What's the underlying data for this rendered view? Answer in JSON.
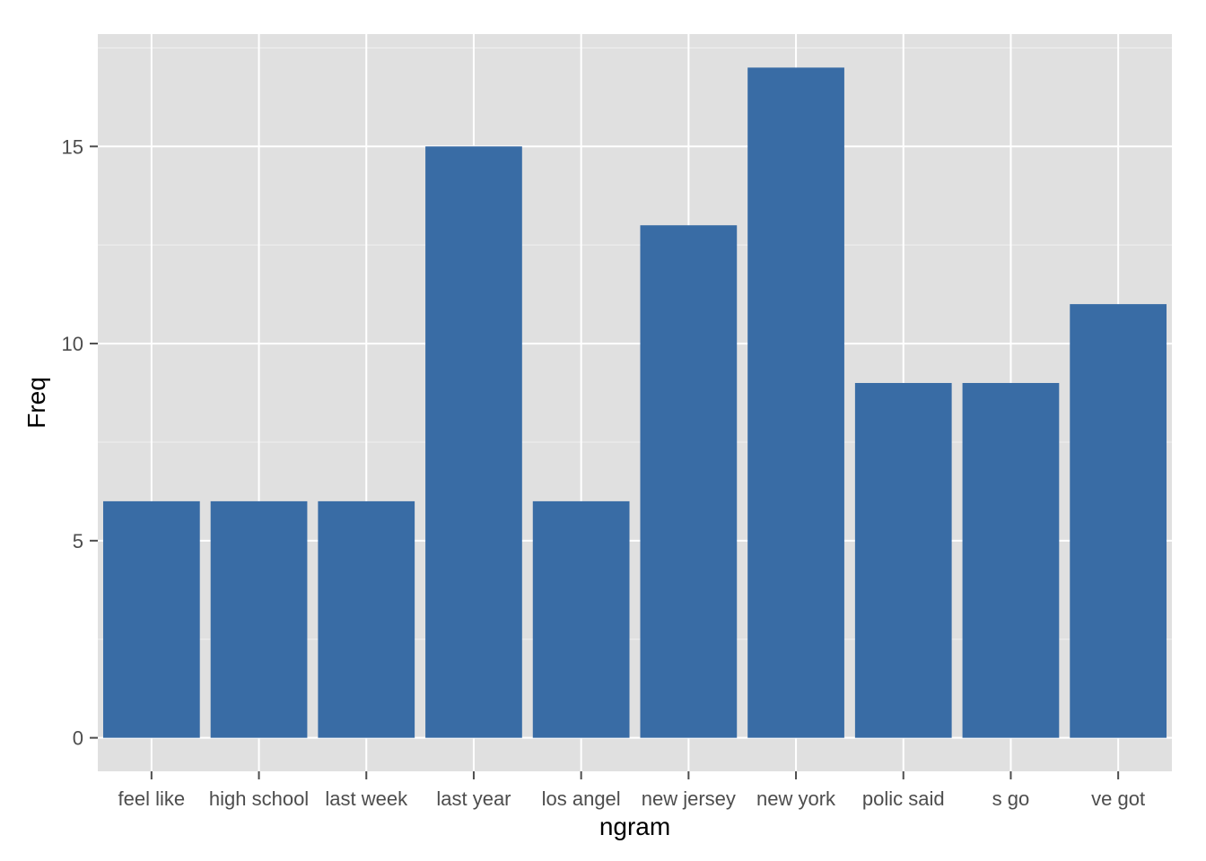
{
  "chart_data": {
    "type": "bar",
    "categories": [
      "feel like",
      "high school",
      "last week",
      "last year",
      "los angel",
      "new jersey",
      "new york",
      "polic said",
      "s go",
      "ve got"
    ],
    "values": [
      6,
      6,
      6,
      15,
      6,
      13,
      17,
      9,
      9,
      11
    ],
    "xlabel": "ngram",
    "ylabel": "Freq",
    "ylim": [
      -0.85,
      17.85
    ],
    "yticks": [
      0,
      5,
      10,
      15
    ],
    "grid": true,
    "legend": "none",
    "colors": {
      "panel_background": "#e0e0e0",
      "grid_line": "#ffffff",
      "bar_fill": "#396ca5",
      "tick_color": "#4d4d4d",
      "axis_title": "#000000"
    }
  }
}
